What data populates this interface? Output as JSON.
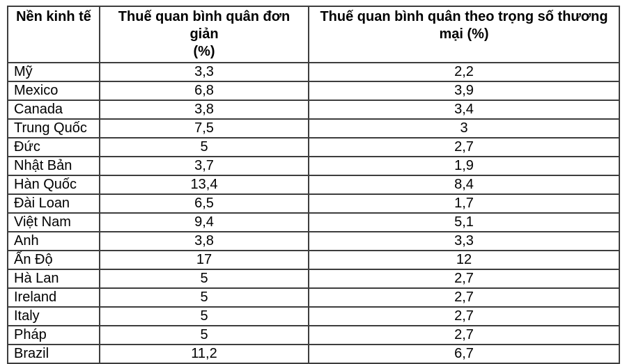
{
  "colors": {
    "background": "#ffffff",
    "border": "#3d3d3d",
    "text": "#000000"
  },
  "table": {
    "headers": [
      {
        "label": "Nền kinh tế"
      },
      {
        "label": "Thuế quan bình quân đơn giản\n(%)"
      },
      {
        "label": "Thuế quan bình quân theo trọng số thương\nmại (%)"
      }
    ],
    "rows": [
      {
        "economy": "Mỹ",
        "simple_avg": "3,3",
        "weighted_avg": "2,2"
      },
      {
        "economy": "Mexico",
        "simple_avg": "6,8",
        "weighted_avg": "3,9"
      },
      {
        "economy": "Canada",
        "simple_avg": "3,8",
        "weighted_avg": "3,4"
      },
      {
        "economy": "Trung Quốc",
        "simple_avg": "7,5",
        "weighted_avg": "3"
      },
      {
        "economy": "Đức",
        "simple_avg": "5",
        "weighted_avg": "2,7"
      },
      {
        "economy": "Nhật Bản",
        "simple_avg": "3,7",
        "weighted_avg": "1,9"
      },
      {
        "economy": "Hàn Quốc",
        "simple_avg": "13,4",
        "weighted_avg": "8,4"
      },
      {
        "economy": "Đài Loan",
        "simple_avg": "6,5",
        "weighted_avg": "1,7"
      },
      {
        "economy": "Việt Nam",
        "simple_avg": "9,4",
        "weighted_avg": "5,1"
      },
      {
        "economy": "Anh",
        "simple_avg": "3,8",
        "weighted_avg": "3,3"
      },
      {
        "economy": "Ấn Độ",
        "simple_avg": "17",
        "weighted_avg": "12"
      },
      {
        "economy": "Hà Lan",
        "simple_avg": "5",
        "weighted_avg": "2,7"
      },
      {
        "economy": "Ireland",
        "simple_avg": "5",
        "weighted_avg": "2,7"
      },
      {
        "economy": "Italy",
        "simple_avg": "5",
        "weighted_avg": "2,7"
      },
      {
        "economy": "Pháp",
        "simple_avg": "5",
        "weighted_avg": "2,7"
      },
      {
        "economy": "Brazil",
        "simple_avg": "11,2",
        "weighted_avg": "6,7"
      }
    ]
  },
  "chart_data": {
    "type": "table",
    "title": "",
    "columns": [
      "Nền kinh tế",
      "Thuế quan bình quân đơn giản (%)",
      "Thuế quan bình quân theo trọng số thương mại (%)"
    ],
    "categories": [
      "Mỹ",
      "Mexico",
      "Canada",
      "Trung Quốc",
      "Đức",
      "Nhật Bản",
      "Hàn Quốc",
      "Đài Loan",
      "Việt Nam",
      "Anh",
      "Ấn Độ",
      "Hà Lan",
      "Ireland",
      "Italy",
      "Pháp",
      "Brazil"
    ],
    "series": [
      {
        "name": "Thuế quan bình quân đơn giản (%)",
        "values": [
          3.3,
          6.8,
          3.8,
          7.5,
          5,
          3.7,
          13.4,
          6.5,
          9.4,
          3.8,
          17,
          5,
          5,
          5,
          5,
          11.2
        ]
      },
      {
        "name": "Thuế quan bình quân theo trọng số thương mại (%)",
        "values": [
          2.2,
          3.9,
          3.4,
          3,
          2.7,
          1.9,
          8.4,
          1.7,
          5.1,
          3.3,
          12,
          2.7,
          2.7,
          2.7,
          2.7,
          6.7
        ]
      }
    ],
    "layout_hints": {
      "decimal_separator": ",",
      "grid": "full-borders",
      "header_bold": true,
      "first_column_align": "left",
      "value_columns_align": "center"
    }
  }
}
